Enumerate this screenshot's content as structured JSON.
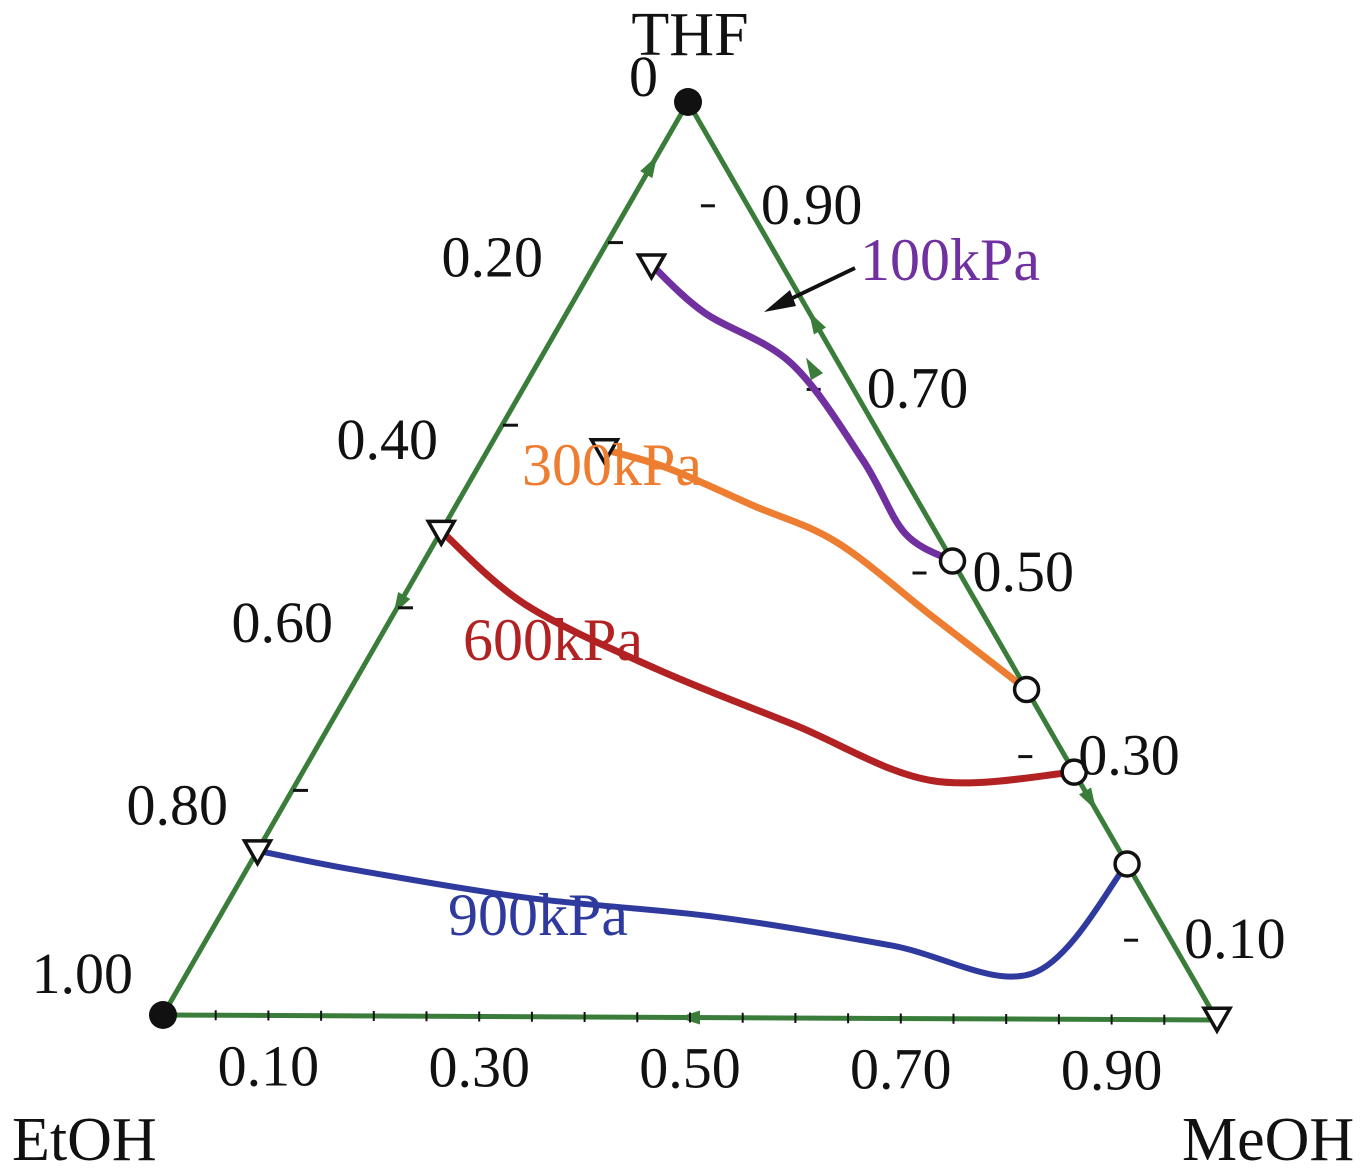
{
  "chart_data": {
    "type": "ternary",
    "vertices": {
      "top": "THF",
      "bottom_left": "EtOH",
      "bottom_right": "MeOH"
    },
    "left_edge_ticks": [
      "0",
      "0.20",
      "0.40",
      "0.60",
      "0.80",
      "1.00"
    ],
    "right_edge_ticks": [
      "0.90",
      "0.70",
      "0.50",
      "0.30",
      "0.10"
    ],
    "bottom_edge_ticks": [
      "0.10",
      "0.30",
      "0.50",
      "0.70",
      "0.90"
    ],
    "axis_color": "#3a7d3a",
    "series": [
      {
        "name": "100kPa",
        "color": "#7030a0",
        "points": [
          {
            "MeOH": 0.054,
            "EtOH": 0.124
          },
          {
            "MeOH": 0.13,
            "EtOH": 0.1
          },
          {
            "MeOH": 0.24,
            "EtOH": 0.045
          },
          {
            "MeOH": 0.36,
            "EtOH": 0.03
          },
          {
            "MeOH": 0.44,
            "EtOH": 0.03
          },
          {
            "MeOH": 0.5,
            "EtOH": 0.0
          }
        ]
      },
      {
        "name": "300kPa",
        "color": "#ed7d31",
        "points": [
          {
            "MeOH": 0.11,
            "EtOH": 0.27
          },
          {
            "MeOH": 0.18,
            "EtOH": 0.22
          },
          {
            "MeOH": 0.28,
            "EtOH": 0.16
          },
          {
            "MeOH": 0.38,
            "EtOH": 0.1
          },
          {
            "MeOH": 0.51,
            "EtOH": 0.05
          },
          {
            "MeOH": 0.64,
            "EtOH": 0.0
          }
        ]
      },
      {
        "name": "600kPa",
        "color": "#b22222",
        "points": [
          {
            "MeOH": 0.0,
            "EtOH": 0.47
          },
          {
            "MeOH": 0.12,
            "EtOH": 0.43
          },
          {
            "MeOH": 0.28,
            "EtOH": 0.34
          },
          {
            "MeOH": 0.44,
            "EtOH": 0.24
          },
          {
            "MeOH": 0.6,
            "EtOH": 0.14
          },
          {
            "MeOH": 0.73,
            "EtOH": 0.0
          }
        ]
      },
      {
        "name": "900kPa",
        "color": "#2e3a9e",
        "points": [
          {
            "MeOH": 0.0,
            "EtOH": 0.82
          },
          {
            "MeOH": 0.1,
            "EtOH": 0.74
          },
          {
            "MeOH": 0.28,
            "EtOH": 0.59
          },
          {
            "MeOH": 0.47,
            "EtOH": 0.42
          },
          {
            "MeOH": 0.65,
            "EtOH": 0.27
          },
          {
            "MeOH": 0.8,
            "EtOH": 0.15
          },
          {
            "MeOH": 0.83,
            "EtOH": 0.0
          }
        ]
      }
    ],
    "pure_component_points": [
      {
        "vertex": "THF",
        "MeOH": 0.0,
        "EtOH": 0.0
      },
      {
        "vertex": "EtOH",
        "MeOH": 0.0,
        "EtOH": 1.0
      }
    ]
  }
}
